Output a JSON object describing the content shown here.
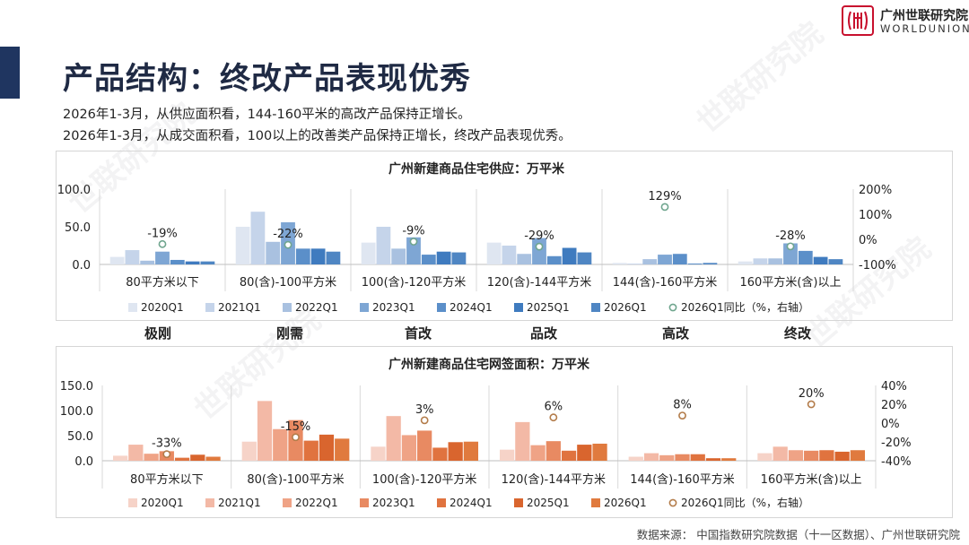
{
  "header": {
    "title": "产品结构：终改产品表现优秀",
    "subtitles": [
      "2026年1-3月，从供应面积看，144-160平米的高改产品保持正增长。",
      "2026年1-3月，从成交面积看，100以上的改善类产品保持正增长，终改产品表现优秀。"
    ],
    "logo_cn": "广州世联研究院",
    "logo_en": "WORLDUNION",
    "brand_color": "#c8102e"
  },
  "watermark_text": "世联研究院",
  "segment_labels": [
    "极刚",
    "刚需",
    "首改",
    "品改",
    "高改",
    "终改"
  ],
  "source": "数据来源：  中国指数研究院数据（十一区数据）、广州世联研究院",
  "chart_data": [
    {
      "type": "bar",
      "title": "广州新建商品住宅供应：万平米",
      "categories": [
        "80平方米以下",
        "80(含)-100平方米",
        "100(含)-120平方米",
        "120(含)-144平方米",
        "144(含)-160平方米",
        "160平方米(含)以上"
      ],
      "ylim": [
        0,
        100
      ],
      "yticks": [
        "0.0",
        "50.0",
        "100.0"
      ],
      "y2lim": [
        -100,
        200
      ],
      "y2ticks": [
        "-100%",
        "0%",
        "100%",
        "200%"
      ],
      "series": [
        {
          "name": "2020Q1",
          "color": "#dfe6f1",
          "values": [
            10,
            50,
            29,
            29,
            2,
            4
          ]
        },
        {
          "name": "2021Q1",
          "color": "#c5d4ea",
          "values": [
            19,
            70,
            50,
            25,
            1,
            8
          ]
        },
        {
          "name": "2022Q1",
          "color": "#a9c1e0",
          "values": [
            5,
            30,
            21,
            14,
            7,
            8
          ]
        },
        {
          "name": "2023Q1",
          "color": "#7ea6d4",
          "values": [
            17,
            56,
            36,
            35,
            13,
            28
          ]
        },
        {
          "name": "2024Q1",
          "color": "#5b8fc9",
          "values": [
            6,
            21,
            13,
            11,
            14,
            18
          ]
        },
        {
          "name": "2025Q1",
          "color": "#3f7bbf",
          "values": [
            4,
            21,
            17,
            22,
            1,
            10
          ]
        },
        {
          "name": "2026Q1",
          "color": "#4f86c3",
          "values": [
            4,
            17,
            16,
            16,
            2,
            7
          ]
        }
      ],
      "yoy": {
        "name": "2026Q1同比（%，右轴）",
        "color": "#6fa58e",
        "values": [
          -19,
          -22,
          -9,
          -29,
          129,
          -28
        ],
        "labels": [
          "-19%",
          "-22%",
          "-9%",
          "-29%",
          "129%",
          "-28%"
        ]
      }
    },
    {
      "type": "bar",
      "title": "广州新建商品住宅网签面积：万平米",
      "categories": [
        "80平方米以下",
        "80(含)-100平方米",
        "100(含)-120平方米",
        "120(含)-144平方米",
        "144(含)-160平方米",
        "160平方米(含)以上"
      ],
      "ylim": [
        0,
        150
      ],
      "yticks": [
        "0.0",
        "50.0",
        "100.0",
        "150.0"
      ],
      "y2lim": [
        -40,
        40
      ],
      "y2ticks": [
        "-40%",
        "-20%",
        "0%",
        "20%",
        "40%"
      ],
      "series": [
        {
          "name": "2020Q1",
          "color": "#f6d3c8",
          "values": [
            10,
            38,
            28,
            22,
            8,
            15
          ]
        },
        {
          "name": "2021Q1",
          "color": "#f3b9a6",
          "values": [
            32,
            119,
            89,
            77,
            15,
            28
          ]
        },
        {
          "name": "2022Q1",
          "color": "#efa386",
          "values": [
            14,
            63,
            51,
            31,
            11,
            21
          ]
        },
        {
          "name": "2023Q1",
          "color": "#e88a62",
          "values": [
            19,
            81,
            60,
            39,
            13,
            20
          ]
        },
        {
          "name": "2024Q1",
          "color": "#e0733f",
          "values": [
            6,
            40,
            26,
            20,
            13,
            21
          ]
        },
        {
          "name": "2025Q1",
          "color": "#d9652e",
          "values": [
            12,
            52,
            37,
            32,
            5,
            18
          ]
        },
        {
          "name": "2026Q1",
          "color": "#e07a3e",
          "values": [
            8,
            44,
            38,
            34,
            5,
            21
          ]
        }
      ],
      "yoy": {
        "name": "2026Q1同比（%，右轴）",
        "color": "#b37c4a",
        "values": [
          -33,
          -15,
          3,
          6,
          8,
          20
        ],
        "labels": [
          "-33%",
          "-15%",
          "3%",
          "6%",
          "8%",
          "20%"
        ]
      }
    }
  ]
}
